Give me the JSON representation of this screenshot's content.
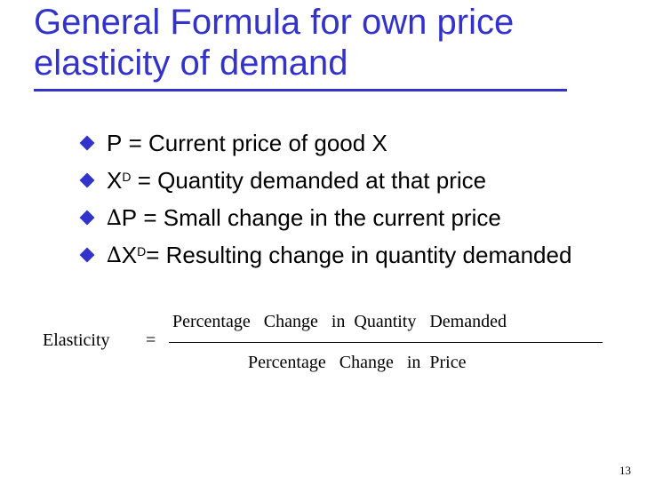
{
  "slide": {
    "title": "General Formula for own price elasticity of demand",
    "bullets": [
      {
        "symbol": "",
        "main": "P",
        "superscript": "",
        "rest": " = Current price of good X"
      },
      {
        "symbol": "",
        "main": "X",
        "superscript": "D",
        "rest": " = Quantity demanded at that price"
      },
      {
        "symbol": "∆",
        "main": "P",
        "superscript": "",
        "rest": " = Small change in the current price"
      },
      {
        "symbol": "∆",
        "main": "X",
        "superscript": "D",
        "rest": "= Resulting change in quantity demanded"
      }
    ],
    "formula": {
      "lhs": "Elasticity",
      "equals": "=",
      "numerator": "Percentage   Change   in  Quantity   Demanded",
      "denominator": "Percentage   Change   in  Price"
    },
    "page_number": "13",
    "colors": {
      "accent": "#3333cc",
      "text": "#000000",
      "background": "#ffffff"
    },
    "bullet_icon": "diamond-bullet-icon"
  }
}
